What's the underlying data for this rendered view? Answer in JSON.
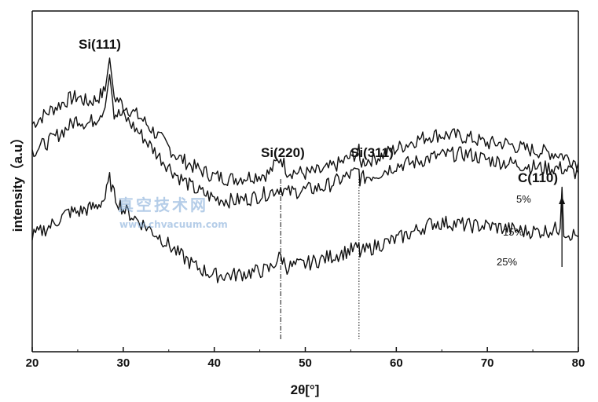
{
  "chart_data": {
    "type": "line",
    "title": "",
    "xlabel": "2θ[°]",
    "ylabel": "intensity（a.u）",
    "xlim": [
      20,
      80
    ],
    "ylim": [
      0,
      100
    ],
    "x_ticks": [
      20,
      30,
      40,
      50,
      60,
      70,
      80
    ],
    "x_tick_labels": [
      "20",
      "30",
      "40",
      "50",
      "60",
      "70",
      "80"
    ],
    "grid": false,
    "series": [
      {
        "name": "5%",
        "x": [
          20,
          22,
          24,
          25,
          26,
          27,
          28,
          28.5,
          29,
          30,
          32,
          34,
          36,
          38,
          40,
          42,
          44,
          46,
          47.3,
          48,
          50,
          52,
          54,
          55.9,
          56,
          58,
          60,
          62,
          64,
          66,
          68,
          70,
          72,
          74,
          76,
          78,
          80
        ],
        "y": [
          72,
          77,
          81,
          82,
          80,
          81,
          84,
          96,
          82,
          79,
          74,
          67,
          60,
          56,
          53,
          52,
          53,
          54,
          60,
          55,
          54,
          55,
          58,
          62,
          58,
          60,
          63,
          66,
          68,
          68,
          67,
          65,
          65,
          63,
          62,
          61,
          58
        ]
      },
      {
        "name": "15%",
        "x": [
          20,
          22,
          24,
          25,
          26,
          27,
          28,
          28.5,
          29,
          30,
          32,
          34,
          36,
          38,
          40,
          42,
          44,
          46,
          47.3,
          48,
          50,
          52,
          54,
          55.9,
          56,
          58,
          60,
          62,
          64,
          66,
          68,
          70,
          72,
          74,
          76,
          78,
          80
        ],
        "y": [
          62,
          66,
          71,
          74,
          72,
          74,
          78,
          90,
          76,
          75,
          68,
          60,
          53,
          48,
          45,
          44,
          45,
          47,
          49,
          47,
          48,
          49,
          52,
          55,
          52,
          54,
          57,
          58,
          60,
          61,
          61,
          59,
          58,
          57,
          56,
          56,
          54
        ]
      },
      {
        "name": "25%",
        "x": [
          20,
          22,
          24,
          25,
          26,
          27,
          28,
          28.5,
          29,
          30,
          32,
          34,
          36,
          38,
          40,
          42,
          44,
          46,
          47.3,
          48,
          50,
          52,
          54,
          55.9,
          56,
          58,
          60,
          62,
          64,
          66,
          68,
          70,
          72,
          74,
          76,
          78,
          78.2,
          78.4,
          80
        ],
        "y": [
          31,
          35,
          40,
          40,
          41,
          42,
          45,
          52,
          46,
          41,
          36,
          31,
          25,
          20,
          17,
          17,
          18,
          19,
          24,
          20,
          21,
          23,
          25,
          27,
          25,
          28,
          30,
          33,
          36,
          36,
          35,
          35,
          34,
          33,
          33,
          34,
          49,
          33,
          31
        ]
      }
    ],
    "series_labels": [
      "5%",
      "15%",
      "25%"
    ],
    "annotations": [
      {
        "text": "Si(111)",
        "x": 28.5,
        "line": "none"
      },
      {
        "text": "Si(220)",
        "x": 47.3,
        "line": "dash-dot"
      },
      {
        "text": "Si(311)",
        "x": 55.9,
        "line": "dotted"
      },
      {
        "text": "C(110)",
        "x": 78.2,
        "line": "arrow"
      }
    ]
  },
  "watermark": {
    "chinese": "真空技术网",
    "url": "www.chvacuum.com"
  },
  "colors": {
    "line": "#111111",
    "watermark": "#7aa6d6"
  }
}
